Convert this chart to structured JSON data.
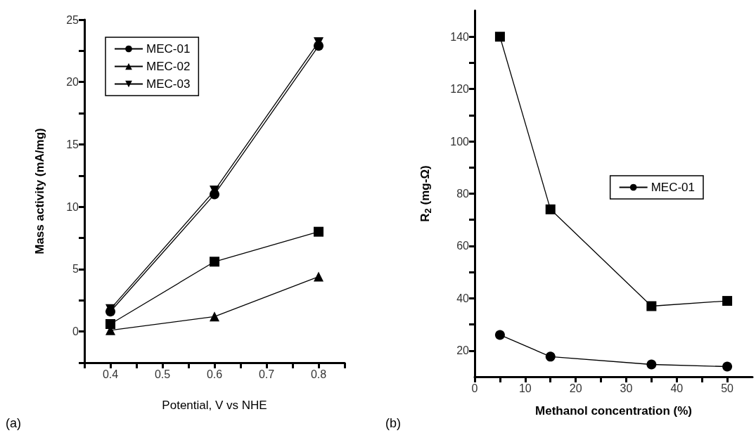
{
  "chart_data": [
    {
      "type": "line",
      "xlabel": "Potential, V vs NHE",
      "ylabel": "Mass activity (mA/mg)",
      "annotations": [
        "(a)"
      ],
      "x": [
        0.4,
        0.6,
        0.8
      ],
      "xlim": [
        0.35,
        0.85
      ],
      "xticks": [
        {
          "value": 0.35,
          "label": null
        },
        0.4,
        {
          "value": 0.45,
          "label": null
        },
        0.5,
        {
          "value": 0.55,
          "label": null
        },
        0.6,
        {
          "value": 0.65,
          "label": null
        },
        0.7,
        {
          "value": 0.75,
          "label": null
        },
        0.8,
        {
          "value": 0.85,
          "label": null
        }
      ],
      "ylim": [
        -2.5,
        25
      ],
      "yticks": [
        {
          "value": -2.5,
          "label": null
        },
        0,
        {
          "value": 2.5,
          "label": null
        },
        5,
        {
          "value": 7.5,
          "label": null
        },
        10,
        {
          "value": 12.5,
          "label": null
        },
        15,
        {
          "value": 17.5,
          "label": null
        },
        20,
        {
          "value": 22.5,
          "label": null
        },
        25
      ],
      "grid": false,
      "legend": "top left",
      "line_style": "solid",
      "series": [
        {
          "color": "#000000",
          "marker": "square",
          "values": [
            0.6,
            5.6,
            8.0
          ]
        },
        {
          "name": "MEC-01",
          "color": "#000000",
          "marker": "circle",
          "values": [
            1.6,
            11.0,
            22.9
          ]
        },
        {
          "name": "MEC-02",
          "color": "#000000",
          "marker": "triangle",
          "values": [
            0.1,
            1.2,
            4.4
          ]
        },
        {
          "name": "MEC-03",
          "color": "#000000",
          "marker": "triangle-down",
          "values": [
            1.8,
            11.3,
            23.2
          ]
        }
      ]
    },
    {
      "type": "line",
      "xlabel": "Methanol concentration (%)",
      "ylabel": "R$_{2}$ (mg-Ω)",
      "annotations": [
        "(b)"
      ],
      "x": [
        5,
        15,
        35,
        50
      ],
      "xlim": [
        0,
        55
      ],
      "xticks": [
        0,
        {
          "value": 5,
          "label": null
        },
        10,
        {
          "value": 15,
          "label": null
        },
        20,
        {
          "value": 25,
          "label": null
        },
        30,
        {
          "value": 35,
          "label": null
        },
        40,
        {
          "value": 45,
          "label": null
        },
        50
      ],
      "ylim": [
        10,
        150
      ],
      "yticks": [
        20,
        {
          "value": 30,
          "label": null
        },
        40,
        {
          "value": 50,
          "label": null
        },
        60,
        {
          "value": 70,
          "label": null
        },
        80,
        {
          "value": 90,
          "label": null
        },
        100,
        {
          "value": 110,
          "label": null
        },
        120,
        {
          "value": 130,
          "label": null
        },
        140
      ],
      "grid": false,
      "legend": "right",
      "line_style": "solid",
      "series": [
        {
          "color": "#000000",
          "marker": "square",
          "values": [
            140,
            74,
            37,
            39
          ]
        },
        {
          "name": "MEC-01",
          "color": "#000000",
          "marker": "circle",
          "values": [
            26,
            17.7,
            14.7,
            13.9
          ]
        }
      ]
    }
  ]
}
